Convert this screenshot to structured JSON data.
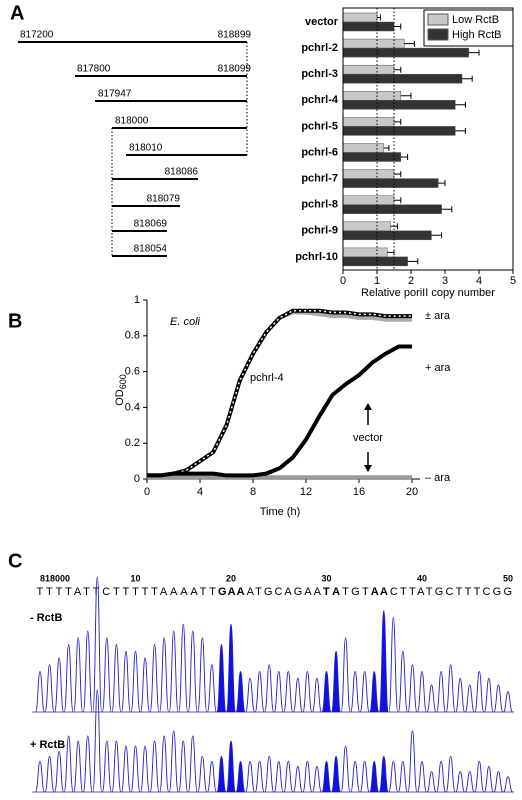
{
  "panel_labels": [
    "A",
    "B",
    "C"
  ],
  "fragments": [
    {
      "start": "817200",
      "end": "818899"
    },
    {
      "start": "817800",
      "end": "818099"
    },
    {
      "label": "817947"
    },
    {
      "label": "818000"
    },
    {
      "label": "818010"
    },
    {
      "label": "818086"
    },
    {
      "label": "818079"
    },
    {
      "label": "818069"
    },
    {
      "label": "818054"
    }
  ],
  "chart_data": [
    {
      "type": "hbar",
      "categories": [
        "vector",
        "pchrl-2",
        "pchrl-3",
        "pchrl-4",
        "pchrl-5",
        "pchrl-6",
        "pchrl-7",
        "pchrl-8",
        "pchrl-9",
        "pchrl-10"
      ],
      "series": [
        {
          "name": "Low RctB",
          "color": "#c8c8c8",
          "values": [
            1.0,
            1.8,
            1.5,
            1.7,
            1.5,
            1.2,
            1.5,
            1.5,
            1.4,
            1.3
          ],
          "errors": [
            0.1,
            0.3,
            0.2,
            0.3,
            0.2,
            0.15,
            0.2,
            0.2,
            0.2,
            0.2
          ]
        },
        {
          "name": "High RctB",
          "color": "#333333",
          "values": [
            1.5,
            3.7,
            3.5,
            3.3,
            3.3,
            1.7,
            2.8,
            2.9,
            2.6,
            1.9
          ],
          "errors": [
            0.2,
            0.3,
            0.3,
            0.3,
            0.3,
            0.2,
            0.2,
            0.3,
            0.3,
            0.3
          ]
        }
      ],
      "reference_lines": [
        1,
        1.5
      ],
      "xlim": [
        0,
        5
      ],
      "xticks": [
        0,
        1,
        2,
        3,
        4,
        5
      ],
      "xlabel": "Relative poriII copy number",
      "legend": "upper right"
    },
    {
      "type": "line",
      "x": [
        0,
        1,
        2,
        3,
        4,
        5,
        6,
        7,
        8,
        9,
        10,
        11,
        12,
        13,
        14,
        15,
        16,
        17,
        18,
        19,
        20
      ],
      "series": [
        {
          "color": "#aaaaaa",
          "values": [
            0.02,
            0.02,
            0.03,
            0.05,
            0.1,
            0.15,
            0.3,
            0.55,
            0.7,
            0.82,
            0.9,
            0.93,
            0.93,
            0.92,
            0.91,
            0.91,
            0.9,
            0.9,
            0.89,
            0.89,
            0.89
          ]
        },
        {
          "color": "#000000",
          "dotted": true,
          "values": [
            0.02,
            0.02,
            0.03,
            0.05,
            0.1,
            0.15,
            0.3,
            0.55,
            0.7,
            0.82,
            0.9,
            0.94,
            0.94,
            0.94,
            0.93,
            0.93,
            0.92,
            0.92,
            0.91,
            0.91,
            0.91
          ]
        },
        {
          "color": "#999999",
          "values": [
            0.01,
            0.01,
            0.01,
            0.01,
            0.01,
            0.01,
            0.01,
            0.01,
            0.01,
            0.01,
            0.01,
            0.01,
            0.01,
            0.01,
            0.01,
            0.01,
            0.01,
            0.01,
            0.01,
            0.01,
            0.01
          ]
        },
        {
          "color": "#000000",
          "values": [
            0.02,
            0.02,
            0.03,
            0.03,
            0.03,
            0.03,
            0.02,
            0.02,
            0.02,
            0.03,
            0.06,
            0.12,
            0.22,
            0.35,
            0.47,
            0.53,
            0.58,
            0.65,
            0.7,
            0.74,
            0.74
          ]
        }
      ],
      "xlim": [
        0,
        20
      ],
      "xticks": [
        0,
        4,
        8,
        12,
        16,
        20
      ],
      "ylim": [
        0,
        1
      ],
      "yticks": [
        0,
        0.2,
        0.4,
        0.6,
        0.8,
        1
      ],
      "xlabel": "Time (h)",
      "ylabel": "OD",
      "ylabel_subscript": "600",
      "annotations": [
        "E. coli",
        "± ara",
        "+ ara",
        "– ara",
        "pchrl-4",
        "vector"
      ]
    }
  ],
  "chromatogram": {
    "positions": [
      {
        "value": 0,
        "label": "818000"
      },
      10,
      20,
      30,
      40,
      50
    ],
    "sequence": [
      {
        "text": "TTTTATTCTTTTTAAAATT",
        "bold": false
      },
      {
        "text": "GAA",
        "bold": true
      },
      {
        "text": "ATGCAGAA",
        "bold": false
      },
      {
        "text": "TA",
        "bold": true
      },
      {
        "text": "TGT",
        "bold": false
      },
      {
        "text": "AA",
        "bold": true
      },
      {
        "text": "CTTATGCTTTCGG",
        "bold": false
      }
    ],
    "traces": [
      {
        "label": "- RctB",
        "peaks": [
          0.3,
          0.35,
          0.4,
          0.5,
          0.55,
          0.6,
          1.0,
          0.55,
          0.5,
          0.45,
          0.45,
          0.4,
          0.5,
          0.55,
          0.6,
          0.65,
          0.6,
          0.55,
          0.35,
          0.5,
          0.65,
          0.3,
          0.25,
          0.3,
          0.35,
          0.3,
          0.3,
          0.25,
          0.3,
          0.25,
          0.3,
          0.45,
          0.55,
          0.3,
          0.3,
          0.3,
          0.75,
          0.7,
          0.45,
          0.35,
          0.3,
          0.2,
          0.3,
          0.35,
          0.25,
          0.2,
          0.3,
          0.25,
          0.2,
          0.15
        ]
      },
      {
        "label": "+ RctB",
        "peaks": [
          0.3,
          0.35,
          0.4,
          0.55,
          0.5,
          0.55,
          1.0,
          0.5,
          0.5,
          0.45,
          0.45,
          0.45,
          0.5,
          0.55,
          0.6,
          0.5,
          0.55,
          0.35,
          0.3,
          0.35,
          0.5,
          0.3,
          0.3,
          0.3,
          0.35,
          0.3,
          0.3,
          0.25,
          0.3,
          0.25,
          0.3,
          0.35,
          0.45,
          0.3,
          0.3,
          0.3,
          0.35,
          0.3,
          0.3,
          0.6,
          0.3,
          0.2,
          0.3,
          0.35,
          0.2,
          0.2,
          0.3,
          0.25,
          0.2,
          0.15
        ]
      }
    ]
  }
}
